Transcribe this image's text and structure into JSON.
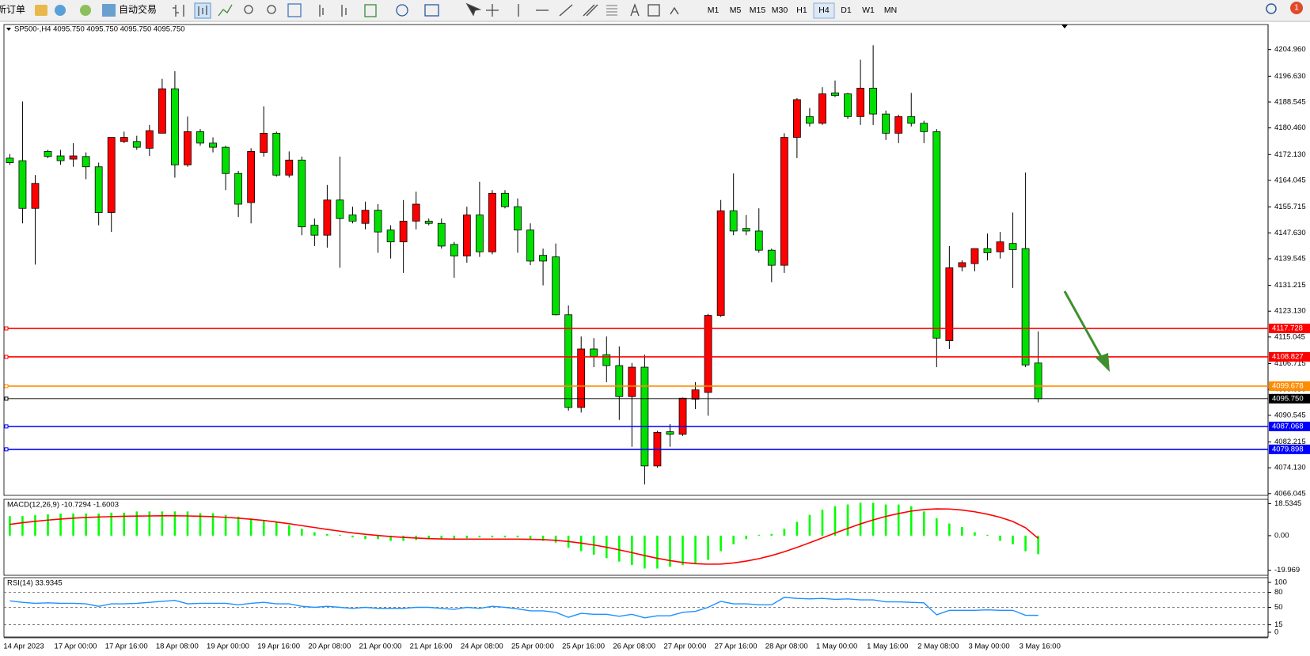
{
  "toolbar": {
    "new_order": "新订单",
    "auto_trading": "自动交易",
    "timeframes": [
      "M1",
      "M5",
      "M15",
      "M30",
      "H1",
      "H4",
      "D1",
      "W1",
      "MN"
    ],
    "active_timeframe": "H4",
    "notification": "1"
  },
  "chart_data": [
    {
      "type": "candlestick",
      "title": "SP500-,H4 4095.750 4095.750 4095.750 4095.750",
      "categories": [
        "14 Apr 2023",
        null,
        null,
        null,
        "17 Apr 00:00",
        null,
        null,
        null,
        "17 Apr 16:00",
        null,
        null,
        null,
        "18 Apr 08:00",
        null,
        null,
        null,
        "19 Apr 00:00",
        null,
        null,
        null,
        "19 Apr 16:00",
        null,
        null,
        null,
        "20 Apr 08:00",
        null,
        null,
        null,
        "21 Apr 00:00",
        null,
        null,
        null,
        "21 Apr 16:00",
        null,
        null,
        null,
        "24 Apr 08:00",
        null,
        null,
        null,
        "25 Apr 00:00",
        null,
        null,
        null,
        "25 Apr 16:00",
        null,
        null,
        null,
        "26 Apr 08:00",
        null,
        null,
        null,
        "27 Apr 00:00",
        null,
        null,
        null,
        "27 Apr 16:00",
        null,
        null,
        null,
        "28 Apr 08:00",
        null,
        null,
        null,
        "1 May 00:00",
        null,
        null,
        null,
        "1 May 16:00",
        null,
        null,
        null,
        "2 May 08:00",
        null,
        null,
        null,
        "3 May 00:00",
        null,
        null,
        null,
        "3 May 16:00",
        null
      ],
      "open": [
        4171.0,
        4170.2,
        4155.3,
        4173.1,
        4171.7,
        4170.7,
        4171.5,
        4168.3,
        4154.0,
        4176.2,
        4176.2,
        4174.1,
        4178.8,
        4192.7,
        4168.9,
        4179.3,
        4175.7,
        4174.4,
        4166.2,
        4157.1,
        4172.8,
        4178.8,
        4165.7,
        4170.4,
        4150.0,
        4146.9,
        4157.9,
        4153.2,
        4150.6,
        4154.7,
        4148.5,
        4144.8,
        4151.3,
        4151.3,
        4150.6,
        4144.0,
        4140.4,
        4153.2,
        4141.7,
        4160.0,
        4155.8,
        4148.5,
        4140.6,
        4140.1,
        4122.0,
        4093.0,
        4111.3,
        4109.5,
        4106.1,
        4096.4,
        4105.6,
        4074.7,
        4085.4,
        4084.6,
        4095.6,
        4097.7,
        4121.8,
        4154.5,
        4149.0,
        4148.2,
        4142.2,
        4137.5,
        4177.5,
        4184.0,
        4181.9,
        4191.4,
        4191.1,
        4184.0,
        4192.9,
        4184.8,
        4178.8,
        4184.0,
        4181.9,
        4179.3,
        4113.9,
        4137.0,
        4138.0,
        4142.7,
        4141.7,
        4144.3,
        4142.7,
        4106.9
      ],
      "high": [
        4172.3,
        4188.7,
        4165.7,
        4173.6,
        4173.6,
        4175.7,
        4172.8,
        4169.6,
        4177.5,
        4179.3,
        4178.0,
        4181.4,
        4195.8,
        4198.2,
        4184.0,
        4180.1,
        4177.5,
        4174.9,
        4167.0,
        4174.1,
        4187.2,
        4179.3,
        4173.1,
        4171.5,
        4152.1,
        4162.6,
        4171.5,
        4155.8,
        4157.4,
        4156.6,
        4150.0,
        4157.9,
        4160.5,
        4152.1,
        4152.1,
        4144.8,
        4155.8,
        4163.6,
        4161.0,
        4161.0,
        4158.4,
        4150.6,
        4142.7,
        4144.3,
        4124.9,
        4115.2,
        4114.7,
        4115.2,
        4112.1,
        4106.9,
        4109.5,
        4085.7,
        4087.8,
        4096.1,
        4100.9,
        4122.3,
        4157.9,
        4166.2,
        4153.2,
        4155.3,
        4142.7,
        4178.8,
        4189.8,
        4186.7,
        4193.2,
        4195.3,
        4191.4,
        4201.8,
        4206.3,
        4185.9,
        4184.6,
        4191.4,
        4182.7,
        4180.1,
        4143.5,
        4139.0,
        4142.7,
        4147.4,
        4147.9,
        4154.0,
        4166.5,
        4116.8
      ],
      "low": [
        4168.9,
        4150.6,
        4137.7,
        4171.0,
        4168.9,
        4168.3,
        4164.4,
        4150.0,
        4147.9,
        4175.7,
        4173.6,
        4171.7,
        4178.8,
        4164.9,
        4168.3,
        4174.9,
        4172.8,
        4161.0,
        4152.6,
        4150.6,
        4171.5,
        4165.2,
        4164.9,
        4146.9,
        4143.5,
        4143.0,
        4136.7,
        4150.6,
        4148.7,
        4141.4,
        4139.6,
        4135.1,
        4148.7,
        4150.0,
        4142.7,
        4133.6,
        4138.3,
        4140.1,
        4140.9,
        4155.3,
        4141.4,
        4137.5,
        4131.2,
        4121.8,
        4092.0,
        4091.4,
        4105.6,
        4100.9,
        4089.1,
        4080.7,
        4068.9,
        4074.2,
        4080.7,
        4084.1,
        4092.5,
        4090.4,
        4121.3,
        4146.9,
        4146.9,
        4141.4,
        4132.2,
        4135.1,
        4171.0,
        4180.9,
        4181.4,
        4190.1,
        4183.3,
        4181.4,
        4181.4,
        4176.7,
        4175.7,
        4180.9,
        4175.7,
        4105.6,
        4111.3,
        4135.6,
        4135.6,
        4139.0,
        4139.6,
        4130.4,
        4105.6,
        4094.6
      ],
      "close": [
        4169.6,
        4155.3,
        4163.1,
        4171.5,
        4170.2,
        4171.7,
        4168.3,
        4154.0,
        4177.5,
        4177.5,
        4174.4,
        4179.6,
        4192.7,
        4168.9,
        4179.3,
        4175.7,
        4174.4,
        4166.2,
        4156.6,
        4173.1,
        4178.8,
        4165.7,
        4170.4,
        4149.5,
        4146.9,
        4157.9,
        4152.1,
        4151.3,
        4154.7,
        4147.9,
        4144.8,
        4151.3,
        4156.6,
        4150.6,
        4143.5,
        4140.4,
        4153.2,
        4141.7,
        4160.0,
        4155.8,
        4148.5,
        4138.8,
        4138.8,
        4122.0,
        4093.0,
        4111.3,
        4109.0,
        4106.1,
        4096.4,
        4105.6,
        4074.7,
        4085.2,
        4084.6,
        4095.9,
        4098.5,
        4121.8,
        4154.5,
        4148.2,
        4148.2,
        4142.2,
        4137.5,
        4177.5,
        4189.3,
        4181.9,
        4191.1,
        4190.6,
        4184.0,
        4192.9,
        4184.8,
        4178.8,
        4184.0,
        4181.9,
        4179.3,
        4114.7,
        4136.7,
        4138.3,
        4142.7,
        4141.4,
        4144.8,
        4142.4,
        4106.3,
        4095.75
      ],
      "up_color": "#ff0000",
      "down_color": "#00e000",
      "ylim": [
        4065.5,
        4212.8
      ],
      "yticks": [
        {
          "value": 4204.96,
          "label": "4204.960"
        },
        {
          "value": 4196.63,
          "label": "4196.630"
        },
        {
          "value": 4188.545,
          "label": "4188.545"
        },
        {
          "value": 4180.46,
          "label": "4180.460"
        },
        {
          "value": 4172.13,
          "label": "4172.130"
        },
        {
          "value": 4164.045,
          "label": "4164.045"
        },
        {
          "value": 4155.715,
          "label": "4155.715"
        },
        {
          "value": 4147.63,
          "label": "4147.630"
        },
        {
          "value": 4139.545,
          "label": "4139.545"
        },
        {
          "value": 4131.215,
          "label": "4131.215"
        },
        {
          "value": 4123.13,
          "label": "4123.130"
        },
        {
          "value": 4115.045,
          "label": "4115.045"
        },
        {
          "value": 4106.715,
          "label": "4106.715"
        },
        {
          "value": 4098.63,
          "label": "4098.630"
        },
        {
          "value": 4090.545,
          "label": "4090.545"
        },
        {
          "value": 4082.215,
          "label": "4082.215"
        },
        {
          "value": 4074.13,
          "label": "4074.130"
        },
        {
          "value": 4066.045,
          "label": "4066.045"
        }
      ],
      "levels": [
        {
          "value": 4117.728,
          "label": "4117.728",
          "color": "#ff0000"
        },
        {
          "value": 4108.827,
          "label": "4108.827",
          "color": "#ff0000"
        },
        {
          "value": 4099.678,
          "label": "4099.678",
          "color": "#ff8c00"
        },
        {
          "value": 4095.75,
          "label": "4095.750",
          "color": "#000000"
        },
        {
          "value": 4087.068,
          "label": "4087.068",
          "color": "#0000ff"
        },
        {
          "value": 4079.898,
          "label": "4079.898",
          "color": "#0000ff"
        }
      ]
    },
    {
      "type": "macd",
      "title": "MACD(12,26,9) -10.7294 -1.6003",
      "histogram": [
        11.3,
        11.3,
        11.8,
        12.3,
        12.8,
        12.8,
        12.8,
        12.8,
        13.3,
        13.3,
        14,
        14,
        14,
        14,
        14,
        13,
        13,
        12,
        11,
        10,
        9,
        8,
        6,
        4,
        2,
        1,
        0.5,
        -1,
        -2,
        -2,
        -3,
        -3,
        -2.5,
        -2,
        -2,
        -2,
        -1.5,
        -1,
        -1,
        -1,
        -1,
        -2,
        -3,
        -4,
        -7,
        -9,
        -11,
        -13,
        -15,
        -17,
        -19,
        -19,
        -18,
        -17,
        -16,
        -14,
        -9,
        -5,
        -2,
        0.5,
        1,
        4,
        8,
        12,
        15,
        17,
        18,
        19,
        19,
        18,
        18,
        17,
        14,
        10,
        7,
        5,
        2,
        0.5,
        -3,
        -5,
        -9,
        -10.7294
      ],
      "signal": [
        6.5,
        7.5,
        8.3,
        9,
        9.6,
        10.1,
        10.5,
        10.8,
        11,
        11.2,
        11.3,
        11.4,
        11.5,
        11.5,
        11.4,
        11.2,
        11,
        10.6,
        10.1,
        9.5,
        8.8,
        7.9,
        6.9,
        5.8,
        4.7,
        3.6,
        2.6,
        1.6,
        0.8,
        0.1,
        -0.5,
        -1,
        -1.4,
        -1.7,
        -1.9,
        -2,
        -2,
        -2,
        -2,
        -2,
        -2,
        -2.1,
        -2.3,
        -2.7,
        -3.4,
        -4.3,
        -5.4,
        -6.7,
        -8.2,
        -9.8,
        -11.5,
        -13.1,
        -14.4,
        -15.5,
        -16.2,
        -16.5,
        -16.4,
        -15.8,
        -14.7,
        -13.3,
        -11.5,
        -9.3,
        -6.8,
        -4.1,
        -1.3,
        1.5,
        4.2,
        6.8,
        9.1,
        11.1,
        12.8,
        14.2,
        15.1,
        15.5,
        15.4,
        14.8,
        13.8,
        12.4,
        10.6,
        8.2,
        4.6,
        -1.6003
      ],
      "histogram_color": "#00ff00",
      "signal_color": "#ff0000",
      "ylim": [
        -22.9,
        21.0
      ],
      "yticks": [
        18.5345,
        {
          "value": 0,
          "label": "0.00"
        },
        -19.969
      ]
    },
    {
      "type": "rsi",
      "title": "RSI(14) 33.9345",
      "values": [
        63,
        60,
        58,
        59,
        58,
        58,
        57,
        52,
        57,
        57,
        58,
        60,
        62,
        64,
        57,
        58,
        58,
        58,
        55,
        58,
        60,
        57,
        57,
        52,
        50,
        52,
        50,
        48,
        50,
        48,
        48,
        48,
        50,
        50,
        48,
        46,
        50,
        48,
        52,
        50,
        47,
        43,
        43,
        40,
        30,
        38,
        36,
        36,
        32,
        36,
        29,
        33,
        33,
        40,
        42,
        50,
        62,
        57,
        57,
        55,
        55,
        70,
        68,
        67,
        68,
        66,
        67,
        65,
        65,
        61,
        61,
        60,
        59,
        35,
        44,
        44,
        44,
        45,
        44,
        44,
        34,
        33.9345
      ],
      "color": "#1e90ff",
      "ylim": [
        -9.5,
        109.5
      ],
      "yticks": [
        100,
        80,
        50,
        15,
        0
      ]
    }
  ]
}
